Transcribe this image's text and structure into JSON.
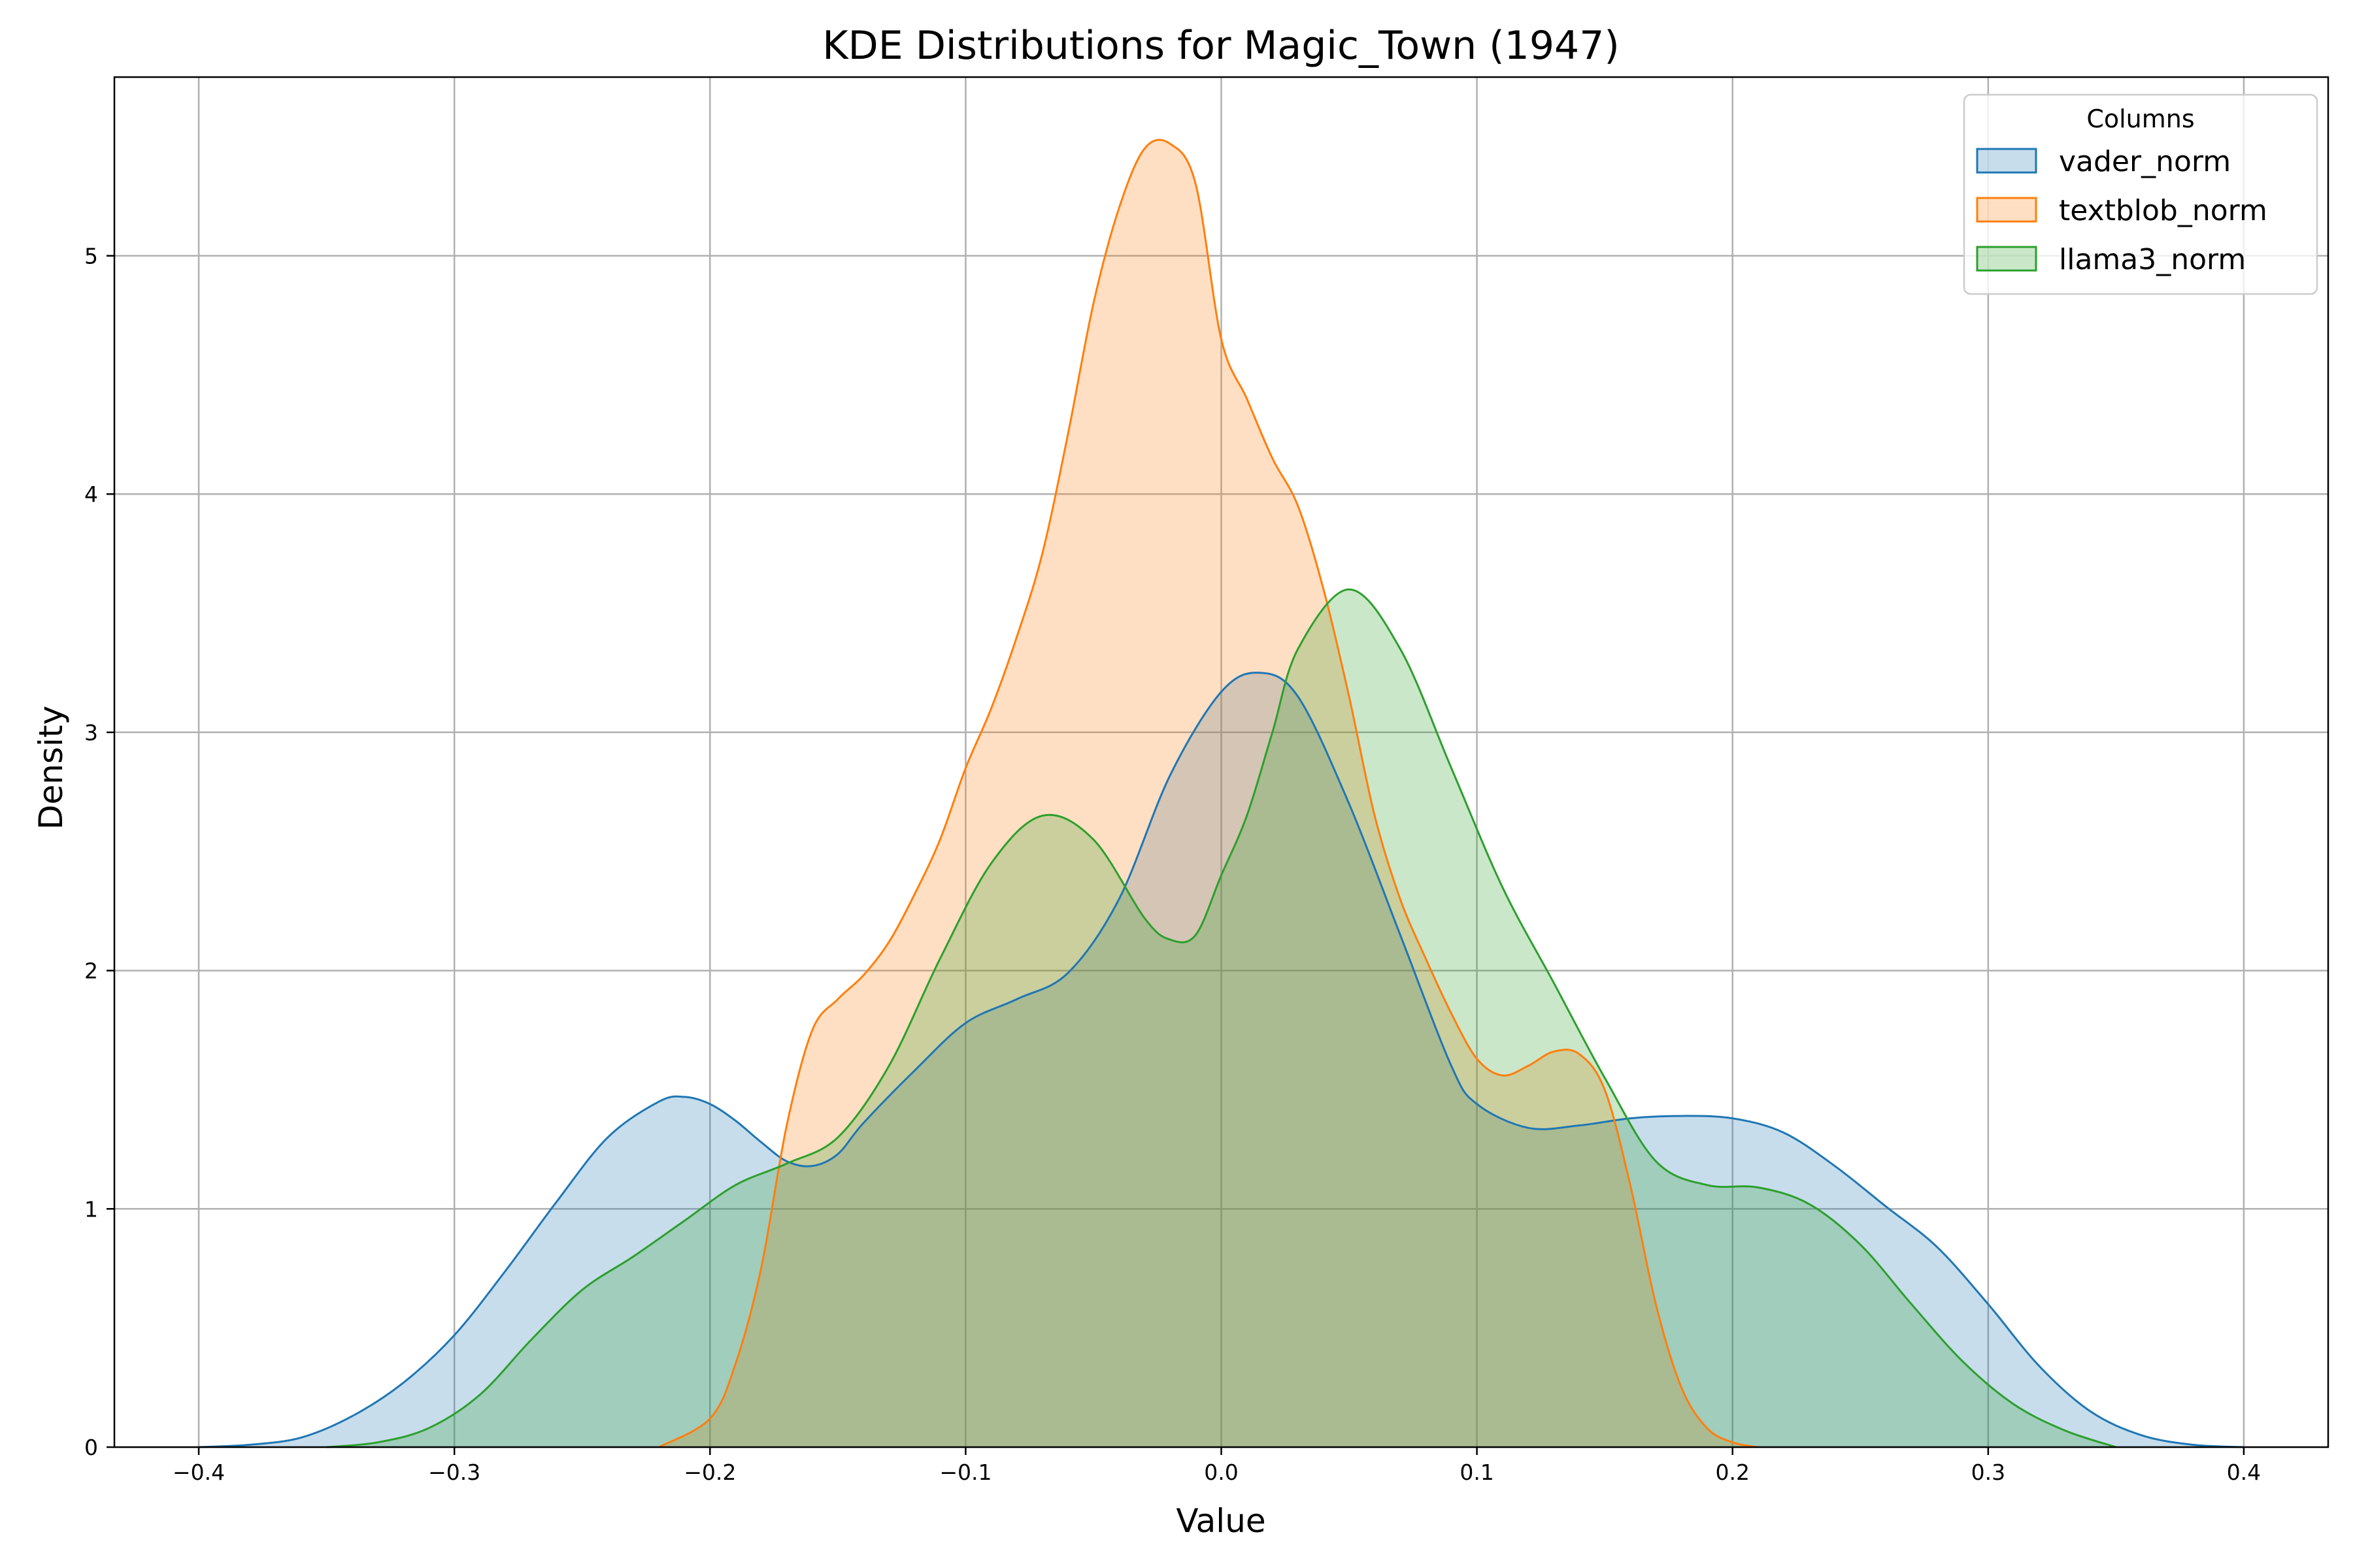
{
  "chart_data": {
    "type": "area",
    "title": "KDE Distributions for Magic_Town (1947)",
    "xlabel": "Value",
    "ylabel": "Density",
    "xlim": [
      -0.433,
      0.433
    ],
    "ylim": [
      0,
      5.75
    ],
    "xticks": [
      -0.4,
      -0.3,
      -0.2,
      -0.1,
      0.0,
      0.1,
      0.2,
      0.3,
      0.4
    ],
    "xtick_labels": [
      "−0.4",
      "−0.3",
      "−0.2",
      "−0.1",
      "0.0",
      "0.1",
      "0.2",
      "0.3",
      "0.4"
    ],
    "yticks": [
      0,
      1,
      2,
      3,
      4,
      5
    ],
    "ytick_labels": [
      "0",
      "1",
      "2",
      "3",
      "4",
      "5"
    ],
    "grid": true,
    "legend": {
      "title": "Columns",
      "position": "top-right"
    },
    "series": [
      {
        "name": "vader_norm",
        "color": "#1f77b4",
        "x": [
          -0.4,
          -0.38,
          -0.36,
          -0.34,
          -0.32,
          -0.3,
          -0.28,
          -0.26,
          -0.24,
          -0.22,
          -0.21,
          -0.2,
          -0.19,
          -0.18,
          -0.17,
          -0.16,
          -0.15,
          -0.14,
          -0.12,
          -0.1,
          -0.08,
          -0.06,
          -0.04,
          -0.02,
          0.0,
          0.015,
          0.03,
          0.05,
          0.07,
          0.09,
          0.1,
          0.12,
          0.14,
          0.16,
          0.18,
          0.2,
          0.22,
          0.24,
          0.26,
          0.28,
          0.3,
          0.32,
          0.34,
          0.36,
          0.38,
          0.4
        ],
        "y": [
          0.0,
          0.01,
          0.04,
          0.13,
          0.27,
          0.47,
          0.74,
          1.03,
          1.3,
          1.45,
          1.47,
          1.44,
          1.37,
          1.28,
          1.2,
          1.18,
          1.23,
          1.36,
          1.58,
          1.78,
          1.88,
          1.99,
          2.3,
          2.82,
          3.17,
          3.25,
          3.15,
          2.7,
          2.15,
          1.6,
          1.44,
          1.34,
          1.35,
          1.38,
          1.39,
          1.38,
          1.32,
          1.18,
          1.01,
          0.84,
          0.6,
          0.34,
          0.15,
          0.05,
          0.01,
          0.0
        ]
      },
      {
        "name": "textblob_norm",
        "color": "#ff7f0e",
        "x": [
          -0.22,
          -0.2,
          -0.19,
          -0.18,
          -0.17,
          -0.16,
          -0.15,
          -0.14,
          -0.13,
          -0.12,
          -0.11,
          -0.1,
          -0.09,
          -0.08,
          -0.07,
          -0.06,
          -0.05,
          -0.04,
          -0.03,
          -0.02,
          -0.01,
          0.0,
          0.01,
          0.02,
          0.03,
          0.04,
          0.05,
          0.06,
          0.07,
          0.08,
          0.09,
          0.1,
          0.11,
          0.12,
          0.13,
          0.14,
          0.15,
          0.16,
          0.17,
          0.18,
          0.19,
          0.2,
          0.21
        ],
        "y": [
          0.0,
          0.12,
          0.35,
          0.75,
          1.35,
          1.75,
          1.88,
          1.98,
          2.12,
          2.32,
          2.55,
          2.85,
          3.1,
          3.4,
          3.75,
          4.25,
          4.8,
          5.2,
          5.45,
          5.47,
          5.3,
          4.65,
          4.4,
          4.15,
          3.95,
          3.6,
          3.15,
          2.65,
          2.3,
          2.05,
          1.82,
          1.63,
          1.56,
          1.6,
          1.66,
          1.65,
          1.5,
          1.1,
          0.6,
          0.25,
          0.08,
          0.02,
          0.0
        ]
      },
      {
        "name": "llama3_norm",
        "color": "#2ca02c",
        "x": [
          -0.35,
          -0.33,
          -0.31,
          -0.29,
          -0.27,
          -0.25,
          -0.23,
          -0.21,
          -0.19,
          -0.17,
          -0.15,
          -0.13,
          -0.11,
          -0.09,
          -0.07,
          -0.05,
          -0.03,
          -0.02,
          -0.01,
          0.0,
          0.01,
          0.02,
          0.03,
          0.05,
          0.07,
          0.09,
          0.11,
          0.13,
          0.15,
          0.17,
          0.19,
          0.21,
          0.23,
          0.25,
          0.27,
          0.29,
          0.31,
          0.33,
          0.35
        ],
        "y": [
          0.0,
          0.02,
          0.08,
          0.22,
          0.45,
          0.66,
          0.8,
          0.95,
          1.1,
          1.19,
          1.3,
          1.6,
          2.05,
          2.45,
          2.65,
          2.55,
          2.22,
          2.13,
          2.15,
          2.4,
          2.65,
          3.0,
          3.35,
          3.6,
          3.35,
          2.85,
          2.35,
          1.95,
          1.55,
          1.2,
          1.1,
          1.09,
          1.02,
          0.85,
          0.6,
          0.36,
          0.18,
          0.07,
          0.0
        ]
      }
    ]
  }
}
